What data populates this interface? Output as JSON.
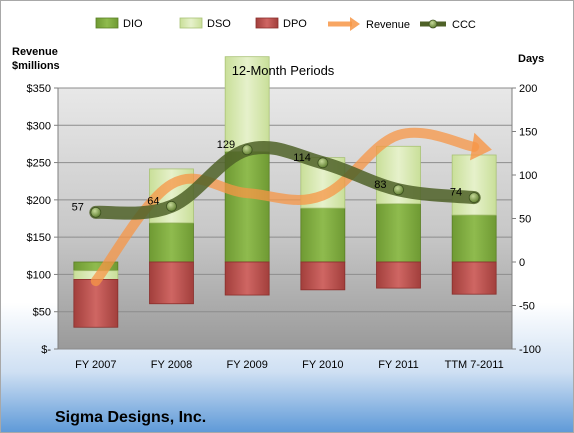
{
  "company": "Sigma Designs, Inc.",
  "chart_data": {
    "type": "bar",
    "title": "12-Month Periods",
    "left_axis_title": "Revenue\n$millions",
    "right_axis_title": "Days",
    "categories": [
      "FY 2007",
      "FY 2008",
      "FY 2009",
      "FY 2010",
      "FY 2011",
      "TTM 7-2011"
    ],
    "left_axis": {
      "min": 0,
      "max": 350,
      "step": 50,
      "tick_labels": [
        "$-",
        "$50",
        "$100",
        "$150",
        "$200",
        "$250",
        "$300",
        "$350"
      ]
    },
    "right_axis": {
      "min": -100,
      "max": 200,
      "step": 50,
      "tick_labels": [
        "-100",
        "-50",
        "0",
        "50",
        "100",
        "150",
        "200"
      ]
    },
    "legend": {
      "placement": "top",
      "entries": [
        "DIO",
        "DSO",
        "DPO",
        "Revenue",
        "CCC"
      ]
    },
    "series": [
      {
        "name": "DIO",
        "axis": "right",
        "color": "#7aa83a",
        "values": [
          -10,
          45,
          127,
          62,
          67,
          54
        ]
      },
      {
        "name": "DSO",
        "axis": "right",
        "color": "#d7e8b0",
        "values": [
          -10,
          62,
          109,
          58,
          66,
          69
        ]
      },
      {
        "name": "DPO",
        "axis": "right",
        "color": "#c0504d",
        "values": [
          -55,
          -48,
          -38,
          -32,
          -30,
          -37
        ]
      },
      {
        "name": "Revenue",
        "axis": "left",
        "color": "#f79646",
        "values": [
          91,
          221,
          209,
          206,
          287,
          271
        ]
      },
      {
        "name": "CCC",
        "axis": "right",
        "color": "#4f6228",
        "values": [
          57,
          64,
          129,
          114,
          83,
          74
        ]
      }
    ],
    "ccc_labels": [
      "57",
      "64",
      "129",
      "114",
      "83",
      "74"
    ],
    "grid": true
  }
}
